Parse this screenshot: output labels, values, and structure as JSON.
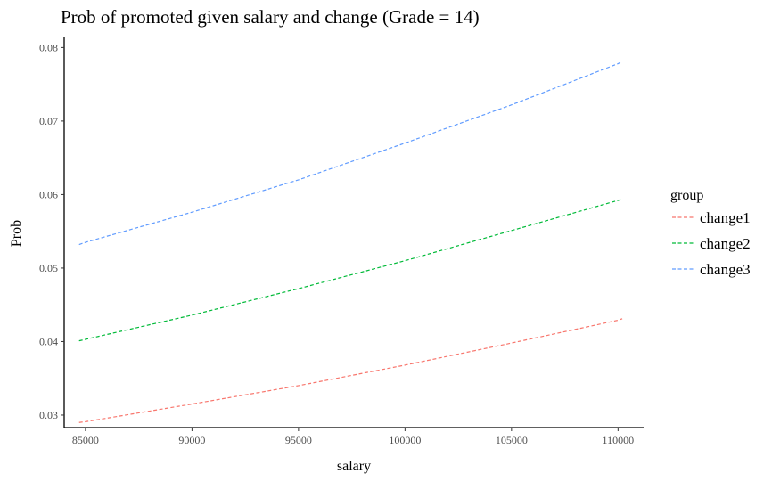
{
  "chart_data": {
    "type": "line",
    "title": "Prob of promoted given salary and change (Grade = 14)",
    "xlabel": "salary",
    "ylabel": "Prob",
    "xlim": [
      84000,
      111200
    ],
    "ylim": [
      0.0283,
      0.0815
    ],
    "xticks": [
      85000,
      90000,
      95000,
      100000,
      105000,
      110000
    ],
    "yticks": [
      0.03,
      0.04,
      0.05,
      0.06,
      0.07,
      0.08
    ],
    "ytick_labels": [
      "0.03",
      "0.04",
      "0.05",
      "0.06",
      "0.07",
      "0.08"
    ],
    "grid": false,
    "line_style": "dashed",
    "legend": {
      "title": "group",
      "position": "right"
    },
    "x": [
      84700,
      85000,
      90000,
      95000,
      100000,
      105000,
      110000,
      110200
    ],
    "series": [
      {
        "name": "change1",
        "color": "#F8766D",
        "values": [
          0.029,
          0.0291,
          0.0315,
          0.034,
          0.0368,
          0.0398,
          0.0429,
          0.0431
        ]
      },
      {
        "name": "change2",
        "color": "#00BA38",
        "values": [
          0.0401,
          0.0403,
          0.0436,
          0.0472,
          0.051,
          0.0551,
          0.0592,
          0.0594
        ]
      },
      {
        "name": "change3",
        "color": "#619CFF",
        "values": [
          0.0532,
          0.0535,
          0.0576,
          0.062,
          0.067,
          0.0722,
          0.0778,
          0.0781
        ]
      }
    ]
  }
}
